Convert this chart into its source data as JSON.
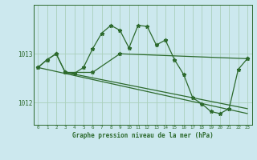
{
  "bg_color": "#cce8ee",
  "line_color": "#2d6a2d",
  "grid_color": "#aacfbb",
  "title": "Graphe pression niveau de la mer (hPa)",
  "xlim": [
    -0.5,
    23.5
  ],
  "ylim": [
    1011.55,
    1014.0
  ],
  "yticks": [
    1012,
    1013
  ],
  "xticks": [
    0,
    1,
    2,
    3,
    4,
    5,
    6,
    7,
    8,
    9,
    10,
    11,
    12,
    13,
    14,
    15,
    16,
    17,
    18,
    19,
    20,
    21,
    22,
    23
  ],
  "series1_x": [
    0,
    1,
    2,
    3,
    4,
    5,
    6,
    7,
    8,
    9,
    10,
    11,
    12,
    13,
    14,
    15,
    16,
    17,
    18,
    19,
    20,
    21,
    22,
    23
  ],
  "series1_y": [
    1012.72,
    1012.88,
    1013.0,
    1012.62,
    1012.6,
    1012.72,
    1013.1,
    1013.42,
    1013.58,
    1013.48,
    1013.12,
    1013.58,
    1013.56,
    1013.18,
    1013.28,
    1012.88,
    1012.58,
    1012.1,
    1011.98,
    1011.82,
    1011.78,
    1011.88,
    1012.68,
    1012.9
  ],
  "series2_x": [
    0,
    1,
    2,
    3,
    6,
    9,
    23
  ],
  "series2_y": [
    1012.72,
    1012.88,
    1013.0,
    1012.62,
    1012.62,
    1013.0,
    1012.9
  ],
  "series3_x": [
    0,
    23
  ],
  "series3_y": [
    1012.72,
    1011.78
  ],
  "series4_x": [
    3,
    23
  ],
  "series4_y": [
    1012.62,
    1011.88
  ]
}
